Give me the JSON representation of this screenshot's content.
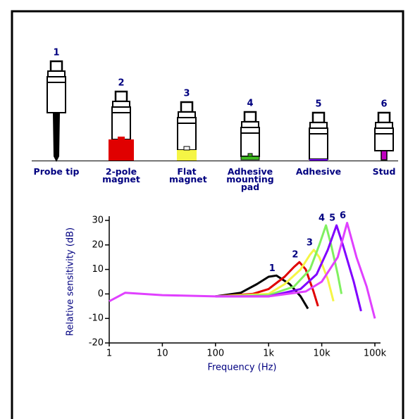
{
  "mounts": [
    {
      "number": "1",
      "label": "Probe tip"
    },
    {
      "number": "2",
      "label": "2-pole magnet"
    },
    {
      "number": "3",
      "label": "Flat magnet"
    },
    {
      "number": "4",
      "label": "Adhesive mounting pad"
    },
    {
      "number": "5",
      "label": "Adhesive"
    },
    {
      "number": "6",
      "label": "Stud"
    }
  ],
  "chart_data": {
    "type": "line",
    "xlabel": "Frequency (Hz)",
    "ylabel": "Relative sensitivity (dB)",
    "log_x": true,
    "grid": false,
    "xlim": [
      1,
      100000
    ],
    "ylim": [
      -20,
      30
    ],
    "xticks": [
      1,
      10,
      100,
      {
        "value": 1000,
        "label": "1k"
      },
      {
        "value": 10000,
        "label": "10k"
      },
      {
        "value": 100000,
        "label": "100k"
      }
    ],
    "yticks": [
      -20,
      -10,
      0,
      10,
      20,
      30
    ],
    "series": [
      {
        "name": "1",
        "color": "#000000",
        "x": [
          100,
          300,
          600,
          1000,
          1400,
          2500,
          4000,
          5500
        ],
        "values": [
          -1,
          0.5,
          4,
          7,
          7.5,
          4,
          -1,
          -6
        ]
      },
      {
        "name": "2",
        "color": "#e00000",
        "x": [
          100,
          500,
          1000,
          2000,
          3000,
          3800,
          5000,
          7000,
          8500
        ],
        "values": [
          -1,
          0,
          2,
          7,
          11,
          13,
          10,
          1,
          -5
        ]
      },
      {
        "name": "3",
        "color": "#f5f545",
        "x": [
          100,
          1000,
          2000,
          4000,
          6000,
          7100,
          9000,
          13000,
          16600
        ],
        "values": [
          -1,
          0,
          4,
          10,
          16,
          18,
          15,
          6,
          -3
        ]
      },
      {
        "name": "4",
        "color": "#80f060",
        "x": [
          100,
          1000,
          3000,
          6000,
          9000,
          12000,
          15000,
          20000,
          23500
        ],
        "values": [
          -1,
          -0.5,
          3,
          10,
          20,
          28,
          20,
          8,
          0
        ]
      },
      {
        "name": "5",
        "color": "#8000ff",
        "x": [
          100,
          1000,
          4000,
          8000,
          13000,
          19000,
          25000,
          40000,
          55000
        ],
        "values": [
          -1,
          -1,
          2,
          8,
          18,
          28,
          20,
          5,
          -7
        ]
      },
      {
        "name": "6",
        "color": "#e040ff",
        "x": [
          1,
          2,
          10,
          100,
          1000,
          5000,
          10000,
          20000,
          30000,
          45000,
          70000,
          100000
        ],
        "values": [
          -3,
          0.5,
          -0.5,
          -1,
          -1,
          1,
          5,
          15,
          29,
          15,
          3,
          -10
        ]
      }
    ]
  }
}
